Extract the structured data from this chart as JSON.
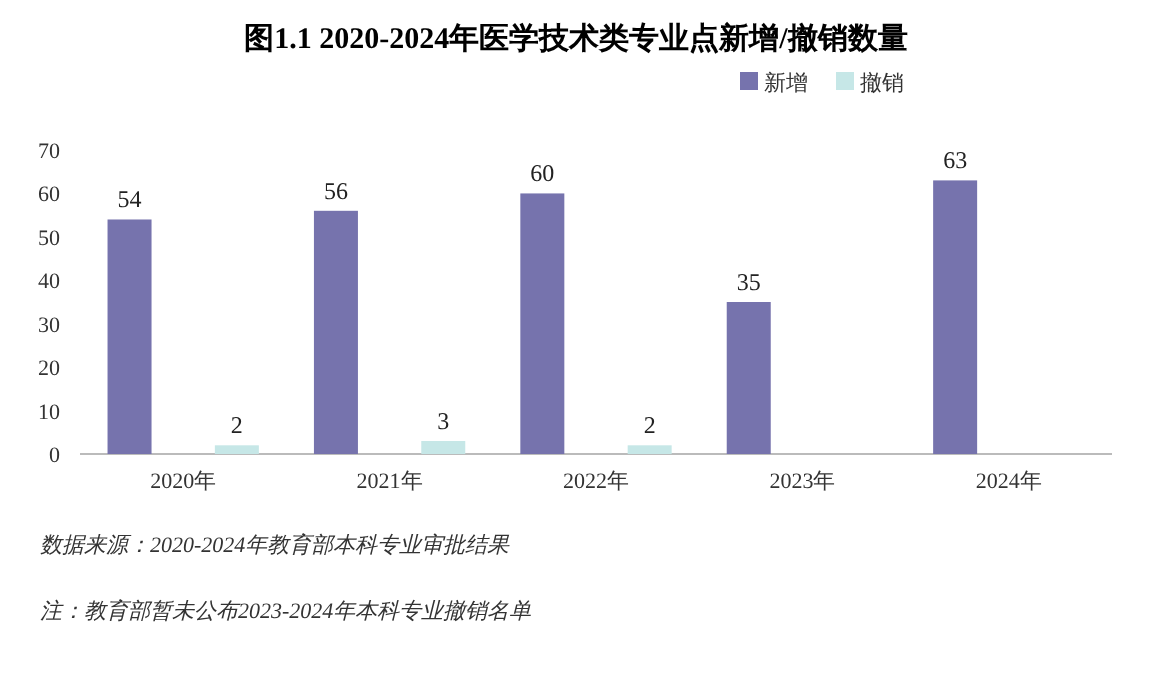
{
  "chart_data": {
    "type": "bar",
    "title": "图1.1  2020-2024年医学技术类专业点新增/撤销数量",
    "categories": [
      "2020年",
      "2021年",
      "2022年",
      "2023年",
      "2024年"
    ],
    "series": [
      {
        "name": "新增",
        "color": "#7673ad",
        "values": [
          54,
          56,
          60,
          35,
          63
        ]
      },
      {
        "name": "撤销",
        "color": "#c6e7e7",
        "values": [
          2,
          3,
          2,
          null,
          null
        ]
      }
    ],
    "ylim": [
      0,
      70
    ],
    "yticks": [
      0,
      10,
      20,
      30,
      40,
      50,
      60,
      70
    ],
    "data_labels": true,
    "legend": "top",
    "annotations": [
      "数据来源：2020-2024年教育部本科专业审批结果",
      "注：教育部暂未公布2023-2024年本科专业撤销名单"
    ]
  }
}
